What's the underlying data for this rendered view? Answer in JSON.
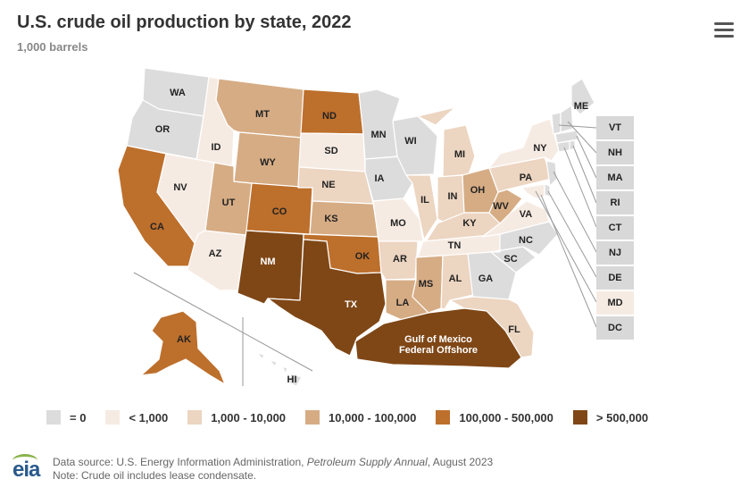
{
  "title": "U.S. crude oil production by state, 2022",
  "subtitle": "1,000 barrels",
  "menu_icon": "hamburger-menu-icon",
  "colors": {
    "zero": "#dcdcdc",
    "lt1k": "#f6ebe3",
    "c1k_10k": "#ecd5c1",
    "c10k_100k": "#d6ac84",
    "c100k_500k": "#bd6f2c",
    "gt500k": "#7f4716",
    "box": "#d8d8d8"
  },
  "legend": [
    {
      "label": "= 0",
      "color": "#dcdcdc"
    },
    {
      "label": "< 1,000",
      "color": "#f6ebe3"
    },
    {
      "label": "1,000 - 10,000",
      "color": "#ecd5c1"
    },
    {
      "label": "10,000 - 100,000",
      "color": "#d6ac84"
    },
    {
      "label": "100,000 - 500,000",
      "color": "#bd6f2c"
    },
    {
      "label": "> 500,000",
      "color": "#7f4716"
    }
  ],
  "states": {
    "WA": {
      "label": "WA",
      "class": "zero"
    },
    "OR": {
      "label": "OR",
      "class": "zero"
    },
    "CA": {
      "label": "CA",
      "class": "c100k_500k"
    },
    "ID": {
      "label": "ID",
      "class": "lt1k"
    },
    "NV": {
      "label": "NV",
      "class": "lt1k"
    },
    "AZ": {
      "label": "AZ",
      "class": "lt1k"
    },
    "MT": {
      "label": "MT",
      "class": "c10k_100k"
    },
    "WY": {
      "label": "WY",
      "class": "c10k_100k"
    },
    "UT": {
      "label": "UT",
      "class": "c10k_100k"
    },
    "CO": {
      "label": "CO",
      "class": "c100k_500k"
    },
    "NM": {
      "label": "NM",
      "class": "gt500k"
    },
    "ND": {
      "label": "ND",
      "class": "c100k_500k"
    },
    "SD": {
      "label": "SD",
      "class": "lt1k"
    },
    "NE": {
      "label": "NE",
      "class": "c1k_10k"
    },
    "KS": {
      "label": "KS",
      "class": "c10k_100k"
    },
    "OK": {
      "label": "OK",
      "class": "c100k_500k"
    },
    "TX": {
      "label": "TX",
      "class": "gt500k"
    },
    "MN": {
      "label": "MN",
      "class": "zero"
    },
    "IA": {
      "label": "IA",
      "class": "zero"
    },
    "MO": {
      "label": "MO",
      "class": "lt1k"
    },
    "AR": {
      "label": "AR",
      "class": "c1k_10k"
    },
    "LA": {
      "label": "LA",
      "class": "c10k_100k"
    },
    "WI": {
      "label": "WI",
      "class": "zero"
    },
    "IL": {
      "label": "IL",
      "class": "c1k_10k"
    },
    "MS": {
      "label": "MS",
      "class": "c10k_100k"
    },
    "MI": {
      "label": "MI",
      "class": "c1k_10k"
    },
    "IN": {
      "label": "IN",
      "class": "c1k_10k"
    },
    "KY": {
      "label": "KY",
      "class": "c1k_10k"
    },
    "TN": {
      "label": "TN",
      "class": "lt1k"
    },
    "AL": {
      "label": "AL",
      "class": "c1k_10k"
    },
    "OH": {
      "label": "OH",
      "class": "c10k_100k"
    },
    "WV": {
      "label": "WV",
      "class": "c10k_100k"
    },
    "VA": {
      "label": "VA",
      "class": "lt1k"
    },
    "NC": {
      "label": "NC",
      "class": "zero"
    },
    "SC": {
      "label": "SC",
      "class": "zero"
    },
    "GA": {
      "label": "GA",
      "class": "zero"
    },
    "FL": {
      "label": "FL",
      "class": "c1k_10k"
    },
    "PA": {
      "label": "PA",
      "class": "c1k_10k"
    },
    "NY": {
      "label": "NY",
      "class": "lt1k"
    },
    "ME": {
      "label": "ME",
      "class": "zero"
    },
    "AK": {
      "label": "AK",
      "class": "c100k_500k"
    },
    "HI": {
      "label": "HI",
      "class": "zero"
    },
    "GOM": {
      "label1": "Gulf of Mexico",
      "label2": "Federal Offshore",
      "class": "gt500k"
    },
    "VT": {
      "label": "VT",
      "class": "zero"
    },
    "NH": {
      "label": "NH",
      "class": "zero"
    },
    "MA": {
      "label": "MA",
      "class": "zero"
    },
    "RI": {
      "label": "RI",
      "class": "zero"
    },
    "CT": {
      "label": "CT",
      "class": "zero"
    },
    "NJ": {
      "label": "NJ",
      "class": "zero"
    },
    "DE": {
      "label": "DE",
      "class": "zero"
    },
    "MD": {
      "label": "MD",
      "class": "lt1k"
    },
    "DC": {
      "label": "DC",
      "class": "zero"
    }
  },
  "footer": {
    "source_prefix": "Data source: U.S. Energy Information Administration, ",
    "source_italic": "Petroleum Supply Annual",
    "source_suffix": ", August 2023",
    "note": "Note: Crude oil includes lease condensate.",
    "logo": "eia"
  }
}
